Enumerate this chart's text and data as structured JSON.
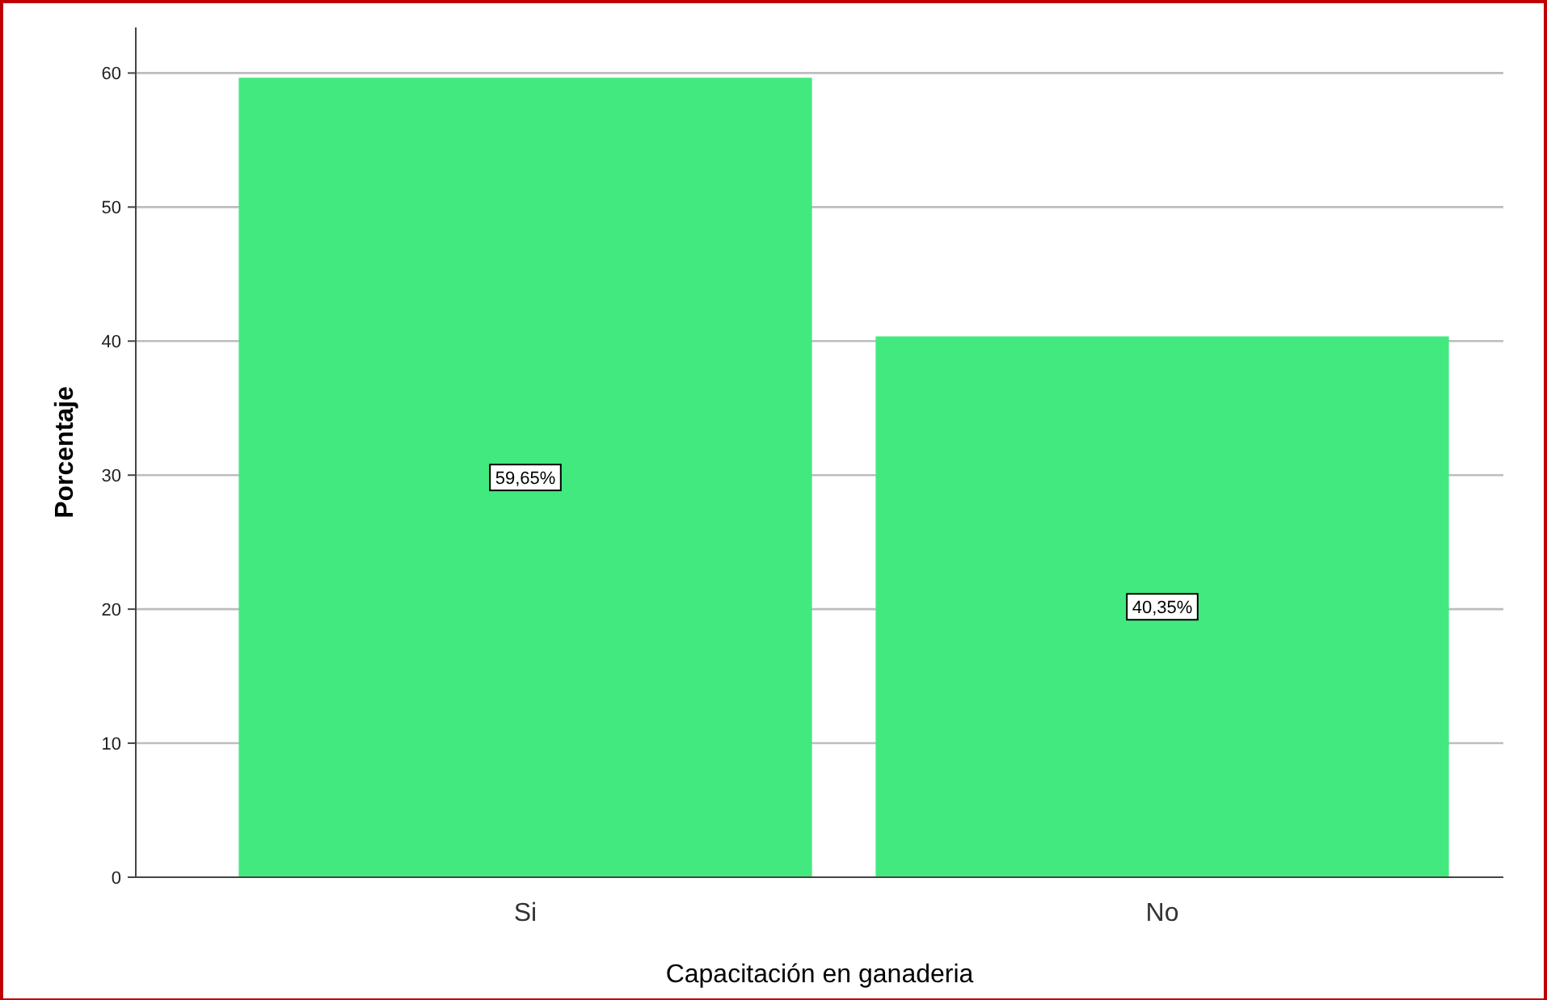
{
  "chart_data": {
    "type": "bar",
    "xlabel": "Capacitación en ganaderia",
    "ylabel": "Porcentaje",
    "categories": [
      "Si",
      "No"
    ],
    "values": [
      59.65,
      40.35
    ],
    "value_labels": [
      "59,65%",
      "40,35%"
    ],
    "color": "#42e97f",
    "ylim": [
      0,
      63.4
    ],
    "yticks": [
      0,
      10,
      20,
      30,
      40,
      50,
      60
    ],
    "grid": "y"
  }
}
